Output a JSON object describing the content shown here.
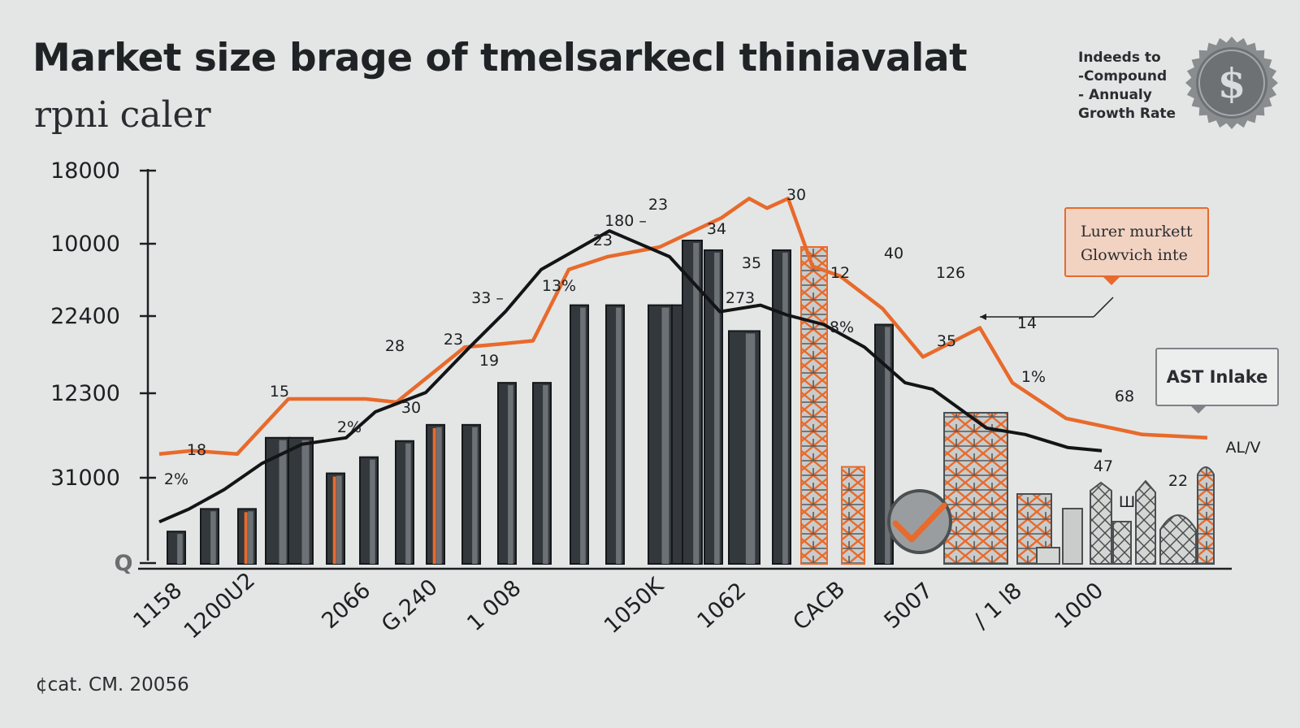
{
  "header": {
    "title": "Market size brage of tmelsarkecl thiniavalat",
    "subtitle": "rpni caler"
  },
  "cagr_note": [
    "Indeeds to",
    "-Compound",
    "- Annualy",
    "Growth Rate"
  ],
  "source": "¢cat. CM. 20056",
  "callout": [
    "Lurer murkett",
    "Glowvich inte"
  ],
  "tag": "AST Inlake",
  "colors": {
    "accent": "#e86a2c",
    "bar": "#33383c",
    "line": "#121416",
    "background": "#e3e6e4"
  },
  "chart_data": {
    "type": "bar",
    "y_tick_labels": [
      "18000",
      "10000",
      "22400",
      "12300",
      "31000",
      "Q"
    ],
    "x_tick_labels": [
      "1158",
      "1200U2",
      "2066",
      "G,240",
      "1 008",
      "1050K",
      "1062",
      "CACB",
      "5007",
      "/ 1 l8",
      "1000"
    ],
    "bar_values": [
      {
        "v": 0.1,
        "accent": false
      },
      {
        "v": 0.17,
        "accent": false
      },
      {
        "v": 0.17,
        "accent": true
      },
      {
        "v": 0.39,
        "accent": false
      },
      {
        "v": 0.39,
        "accent": false
      },
      {
        "v": 0.28,
        "accent": true
      },
      {
        "v": 0.33,
        "accent": false
      },
      {
        "v": 0.38,
        "accent": false
      },
      {
        "v": 0.43,
        "accent": true
      },
      {
        "v": 0.43,
        "accent": false
      },
      {
        "v": 0.56,
        "accent": false
      },
      {
        "v": 0.56,
        "accent": false
      },
      {
        "v": 0.8,
        "accent": false
      },
      {
        "v": 0.8,
        "accent": false
      },
      {
        "v": 0.8,
        "accent": false
      },
      {
        "v": 0.8,
        "accent": false
      },
      {
        "v": 1.0,
        "accent": false
      },
      {
        "v": 0.97,
        "accent": false
      },
      {
        "v": 0.72,
        "accent": false
      },
      {
        "v": 0.97,
        "accent": false
      },
      {
        "v": 0.98,
        "accent": true
      },
      {
        "v": 0.3,
        "accent": true
      },
      {
        "v": 0.74,
        "accent": false
      }
    ],
    "series": [
      {
        "values": [
          0.34,
          0.35,
          0.34,
          0.51,
          0.51,
          0.5,
          0.67,
          0.68,
          0.69,
          0.91,
          0.95,
          0.98,
          1.07,
          1.13,
          1.1,
          1.13,
          0.92,
          0.89,
          0.79,
          0.64,
          0.73,
          0.56,
          0.45,
          0.4,
          0.39
        ]
      },
      {
        "values": [
          0.13,
          0.17,
          0.23,
          0.31,
          0.37,
          0.39,
          0.47,
          0.53,
          0.67,
          0.78,
          0.91,
          1.03,
          0.95,
          0.78,
          0.8,
          0.77,
          0.74,
          0.67,
          0.56,
          0.54,
          0.42,
          0.4,
          0.36,
          0.35
        ]
      }
    ],
    "data_labels": [
      "18",
      "2%",
      "15",
      "2%",
      "28",
      "30",
      "23",
      "19",
      "33 –",
      "13%",
      "23",
      "180 –",
      "23",
      "34",
      "35",
      "273",
      "30",
      "12",
      "8%",
      "40",
      "126",
      "35",
      "14",
      "1%",
      "68",
      "47",
      "22",
      "AL/V",
      "Ш"
    ]
  }
}
